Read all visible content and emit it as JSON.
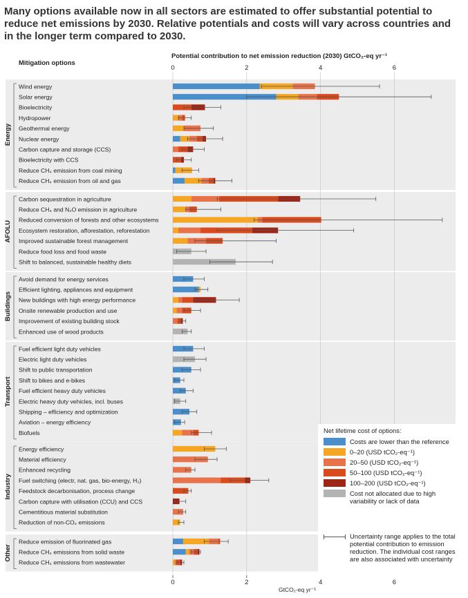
{
  "title": "Many options available now in all sectors are estimated to offer substantial potential to reduce net emissions by 2030. Relative potentials and costs will vary across countries and in the longer term compared to 2030.",
  "colors": {
    "lower": "#4a8fcc",
    "c0_20": "#f5a623",
    "c20_50": "#e8734a",
    "c50_100": "#d94a1c",
    "c100_200": "#9e2617",
    "na": "#b3b3b3",
    "panel_bg": "#ececec",
    "whisker": "#555555"
  },
  "chart_data": {
    "type": "bar",
    "orientation": "horizontal",
    "stacked": true,
    "title": "Potential contribution to net emission reduction (2030) GtCO₂-eq yr⁻¹",
    "column_header": "Mitigation options",
    "xlabel": "GtCO₂-eq yr⁻¹",
    "xlim": [
      0,
      6
    ],
    "xticks": [
      "0",
      "2",
      "4",
      "6"
    ],
    "cost_categories": [
      "Costs are lower than the reference",
      "0–20 (USD tCO₂-eq⁻¹)",
      "20–50 (USD tCO₂-eq⁻¹)",
      "50–100 (USD tCO₂-eq⁻¹)",
      "100–200 (USD tCO₂-eq⁻¹)",
      "Cost not allocated due to high variability or lack of data"
    ],
    "sectors": [
      {
        "name": "Energy",
        "options": [
          {
            "label": "Wind energy",
            "segments": [
              2.35,
              0.9,
              0.6,
              0,
              0,
              0
            ],
            "range": [
              2.4,
              5.6
            ]
          },
          {
            "label": "Solar energy",
            "segments": [
              2.8,
              0.6,
              0.5,
              0.6,
              0,
              0
            ],
            "range": [
              2.0,
              7.0
            ]
          },
          {
            "label": "Bioelectricity",
            "segments": [
              0,
              0,
              0,
              0.5,
              0.37,
              0
            ],
            "range": [
              0.3,
              1.3
            ]
          },
          {
            "label": "Hydropower",
            "segments": [
              0,
              0.15,
              0.1,
              0.08,
              0,
              0
            ],
            "range": [
              0.15,
              0.5
            ]
          },
          {
            "label": "Geothermal energy",
            "segments": [
              0,
              0.3,
              0.45,
              0,
              0,
              0
            ],
            "range": [
              0.3,
              1.1
            ]
          },
          {
            "label": "Nuclear energy",
            "segments": [
              0.2,
              0.25,
              0.2,
              0.15,
              0.1,
              0
            ],
            "range": [
              0.4,
              1.35
            ]
          },
          {
            "label": "Carbon capture and storage (CCS)",
            "segments": [
              0,
              0,
              0.15,
              0.25,
              0.15,
              0
            ],
            "range": [
              0.25,
              0.85
            ]
          },
          {
            "label": "Bioelectricity with CCS",
            "segments": [
              0,
              0,
              0,
              0.22,
              0.08,
              0
            ],
            "range": [
              0.1,
              0.5
            ]
          },
          {
            "label": "Reduce CH₄ emission from coal mining",
            "segments": [
              0.07,
              0.45,
              0,
              0,
              0,
              0
            ],
            "range": [
              0.25,
              0.7
            ]
          },
          {
            "label": "Reduce CH₄ emission from oil and gas",
            "segments": [
              0.32,
              0.45,
              0.2,
              0.13,
              0.05,
              0
            ],
            "range": [
              0.7,
              1.6
            ]
          }
        ]
      },
      {
        "name": "AFOLU",
        "options": [
          {
            "label": "Carbon sequestration in agriculture",
            "segments": [
              0,
              0.5,
              0.75,
              1.6,
              0.6,
              0
            ],
            "range": [
              1.2,
              5.5
            ]
          },
          {
            "label": "Reduce CH₄ and N₂O emission in agriculture",
            "segments": [
              0,
              0.35,
              0.1,
              0.2,
              0,
              0
            ],
            "range": [
              0.35,
              1.3
            ]
          },
          {
            "label": "Reduced conversion of forests and other ecosystems",
            "segments": [
              0,
              2.3,
              0.12,
              1.6,
              0,
              0
            ],
            "range": [
              2.2,
              7.3
            ]
          },
          {
            "label": "Ecosystem restoration, afforestation, reforestation",
            "segments": [
              0,
              0.15,
              0.6,
              1.4,
              0.7,
              0
            ],
            "range": [
              1.2,
              4.9
            ]
          },
          {
            "label": "Improved sustainable forest management",
            "segments": [
              0,
              0.4,
              0.5,
              0.45,
              0,
              0
            ],
            "range": [
              0.6,
              2.8
            ]
          },
          {
            "label": "Reduce food loss and food waste",
            "segments": [
              0,
              0,
              0,
              0,
              0,
              0.5
            ],
            "range": [
              0.1,
              0.9
            ]
          },
          {
            "label": "Shift to balanced, sustainable healthy diets",
            "segments": [
              0,
              0,
              0,
              0,
              0,
              1.7
            ],
            "range": [
              1.0,
              2.7
            ]
          }
        ]
      },
      {
        "name": "Buildings",
        "options": [
          {
            "label": "Avoid demand for energy services",
            "segments": [
              0.55,
              0,
              0,
              0,
              0,
              0
            ],
            "range": [
              0.3,
              0.85
            ]
          },
          {
            "label": "Efficient lighting, appliances and equipment",
            "segments": [
              0.7,
              0.05,
              0,
              0,
              0,
              0
            ],
            "range": [
              0.6,
              0.95
            ]
          },
          {
            "label": "New buildings with high energy performance",
            "segments": [
              0,
              0.15,
              0.1,
              0.3,
              0.62,
              0
            ],
            "range": [
              0.6,
              1.8
            ]
          },
          {
            "label": "Onsite renewable production and use",
            "segments": [
              0,
              0.1,
              0.15,
              0.25,
              0,
              0
            ],
            "range": [
              0.3,
              0.75
            ]
          },
          {
            "label": "Improvement of existing building stock",
            "segments": [
              0,
              0,
              0.12,
              0.1,
              0.05,
              0
            ],
            "range": [
              0.2,
              0.35
            ]
          },
          {
            "label": "Enhanced use of wood products",
            "segments": [
              0,
              0,
              0,
              0,
              0,
              0.4
            ],
            "range": [
              0.25,
              0.5
            ]
          }
        ]
      },
      {
        "name": "Transport",
        "options": [
          {
            "label": "Fuel efficient light duty vehicles",
            "segments": [
              0.55,
              0,
              0,
              0,
              0,
              0
            ],
            "range": [
              0.3,
              0.85
            ]
          },
          {
            "label": "Electric light duty vehicles",
            "segments": [
              0,
              0,
              0,
              0,
              0,
              0.6
            ],
            "range": [
              0.3,
              0.9
            ]
          },
          {
            "label": "Shift to public transportation",
            "segments": [
              0.5,
              0,
              0,
              0,
              0,
              0
            ],
            "range": [
              0.25,
              0.75
            ]
          },
          {
            "label": "Shift to bikes and e-bikes",
            "segments": [
              0.2,
              0,
              0,
              0,
              0,
              0
            ],
            "range": [
              0.05,
              0.3
            ]
          },
          {
            "label": "Fuel efficient heavy duty vehicles",
            "segments": [
              0.35,
              0,
              0,
              0,
              0,
              0
            ],
            "range": [
              0.2,
              0.55
            ]
          },
          {
            "label": "Electric heavy duty vehicles, incl. buses",
            "segments": [
              0,
              0,
              0,
              0,
              0,
              0.2
            ],
            "range": [
              0.05,
              0.35
            ]
          },
          {
            "label": "Shipping – efficiency and optimization",
            "segments": [
              0.45,
              0,
              0,
              0,
              0,
              0
            ],
            "range": [
              0.25,
              0.65
            ]
          },
          {
            "label": "Aviation – energy efficiency",
            "segments": [
              0.22,
              0,
              0,
              0,
              0,
              0
            ],
            "range": [
              0.05,
              0.32
            ]
          },
          {
            "label": "Biofuels",
            "segments": [
              0,
              0.25,
              0.3,
              0.15,
              0,
              0
            ],
            "range": [
              0.5,
              1.05
            ]
          }
        ]
      },
      {
        "name": "Industry",
        "options": [
          {
            "label": "Energy efficiency",
            "segments": [
              0,
              1.15,
              0,
              0,
              0,
              0
            ],
            "range": [
              0.85,
              1.45
            ]
          },
          {
            "label": "Material efficiency",
            "segments": [
              0,
              0,
              0.95,
              0,
              0,
              0
            ],
            "range": [
              0.6,
              1.2
            ]
          },
          {
            "label": "Enhanced recycling",
            "segments": [
              0,
              0,
              0.5,
              0,
              0,
              0
            ],
            "range": [
              0.35,
              0.6
            ]
          },
          {
            "label": "Fuel switching (electr, nat. gas, bio-energy, H₂)",
            "segments": [
              0,
              0,
              1.3,
              0.65,
              0.15,
              0
            ],
            "range": [
              1.55,
              2.6
            ]
          },
          {
            "label": "Feedstock decarbonisation, process change",
            "segments": [
              0,
              0,
              0,
              0.42,
              0,
              0
            ],
            "range": [
              0.3,
              0.5
            ]
          },
          {
            "label": "Carbon capture with utilisation (CCU) and CCS",
            "segments": [
              0,
              0,
              0,
              0,
              0.18,
              0
            ],
            "range": [
              0.05,
              0.35
            ]
          },
          {
            "label": "Cementitious material substitution",
            "segments": [
              0,
              0,
              0.28,
              0,
              0,
              0
            ],
            "range": [
              0.15,
              0.35
            ]
          },
          {
            "label": "Reduction of non-CO₂ emissions",
            "segments": [
              0,
              0.2,
              0,
              0,
              0,
              0
            ],
            "range": [
              0.15,
              0.3
            ]
          }
        ]
      },
      {
        "name": "Other",
        "options": [
          {
            "label": "Reduce emission of fluorinated gas",
            "segments": [
              0.28,
              0.7,
              0.25,
              0.05,
              0,
              0
            ],
            "range": [
              0.85,
              1.5
            ]
          },
          {
            "label": "Reduce CH₄ emissions from solid waste",
            "segments": [
              0.35,
              0.1,
              0.12,
              0.1,
              0.05,
              0
            ],
            "range": [
              0.5,
              0.75
            ]
          },
          {
            "label": "Reduce CH₄ emissions from wastewater",
            "segments": [
              0,
              0.05,
              0.05,
              0.1,
              0.05,
              0
            ],
            "range": [
              0.1,
              0.3
            ]
          }
        ]
      }
    ]
  },
  "legend": {
    "title": "Net lifetime cost of options:",
    "items": [
      {
        "label": "Costs are lower than the reference",
        "color": "#4a8fcc"
      },
      {
        "label": "0–20 (USD tCO₂-eq⁻¹)",
        "color": "#f5a623"
      },
      {
        "label": "20–50 (USD tCO₂-eq⁻¹)",
        "color": "#e8734a"
      },
      {
        "label": "50–100 (USD tCO₂-eq⁻¹)",
        "color": "#d94a1c"
      },
      {
        "label": "100–200 (USD tCO₂-eq⁻¹)",
        "color": "#9e2617"
      },
      {
        "label": "Cost not allocated due to high variability or lack of data",
        "color": "#b3b3b3"
      }
    ],
    "uncertainty_note": "Uncertainty range applies to the total potential contribution to emission reduction. The individual cost ranges are also associated with uncertainty"
  }
}
